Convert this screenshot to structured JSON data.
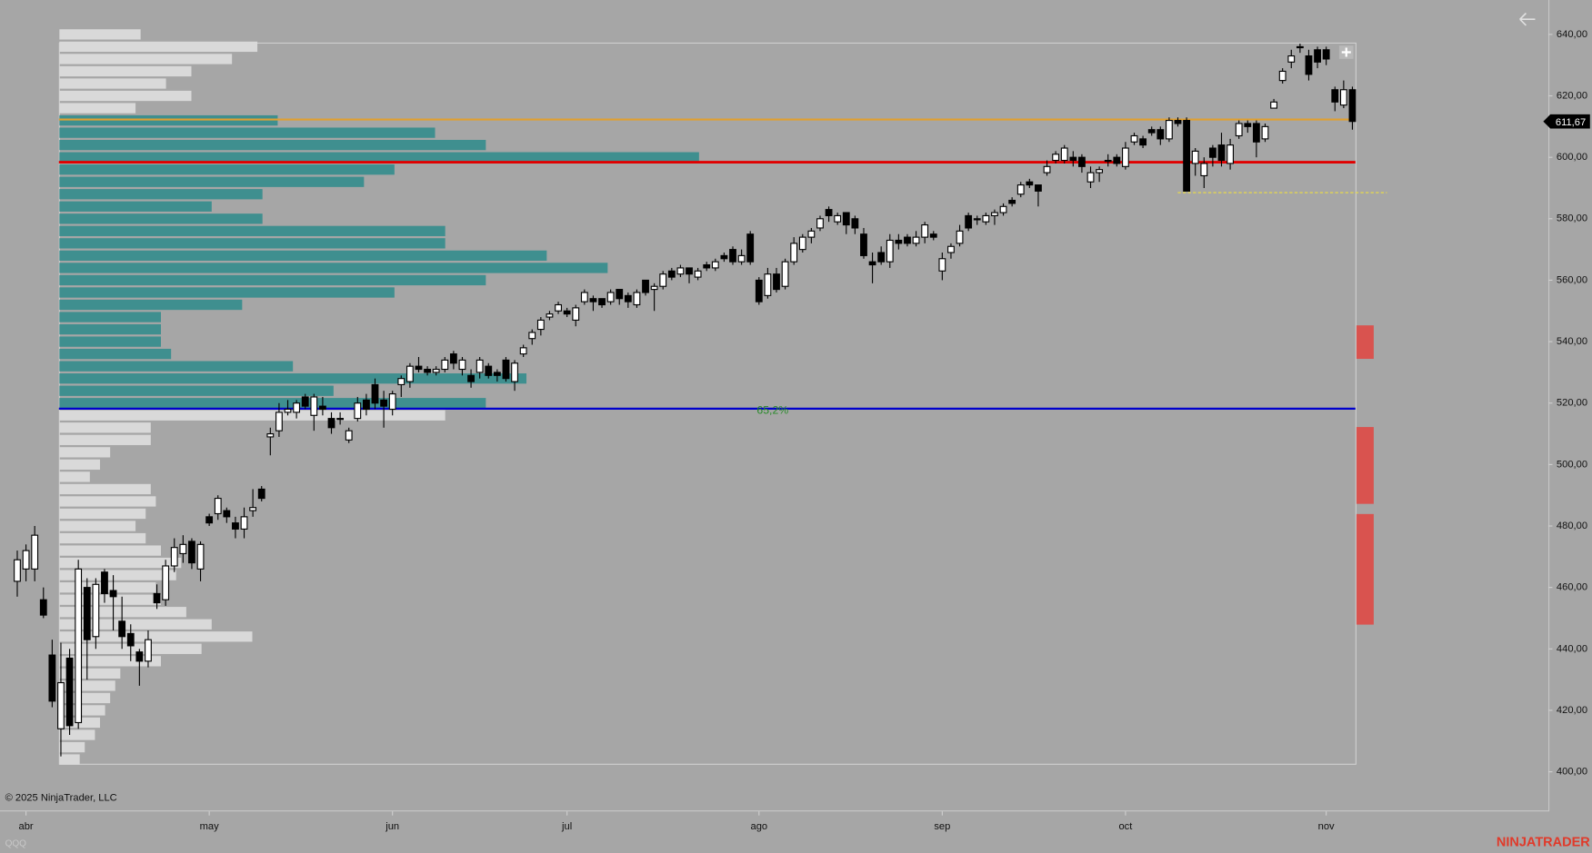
{
  "chart_data": {
    "type": "candlestick",
    "symbol": "QQQ",
    "copyright": "© 2025 NinjaTrader, LLC",
    "brand": "NINJATRADER",
    "categories": [
      null,
      "abr",
      null,
      null,
      null,
      null,
      null,
      null,
      null,
      null,
      null,
      null,
      null,
      null,
      null,
      null,
      null,
      null,
      null,
      null,
      null,
      null,
      "may",
      null,
      null,
      null,
      null,
      null,
      null,
      null,
      null,
      null,
      null,
      null,
      null,
      null,
      null,
      null,
      null,
      null,
      null,
      null,
      null,
      "jun",
      null,
      null,
      null,
      null,
      null,
      null,
      null,
      null,
      null,
      null,
      null,
      null,
      null,
      null,
      null,
      null,
      null,
      null,
      null,
      "jul",
      null,
      null,
      null,
      null,
      null,
      null,
      null,
      null,
      null,
      null,
      null,
      null,
      null,
      null,
      null,
      null,
      null,
      null,
      null,
      null,
      null,
      "ago",
      null,
      null,
      null,
      null,
      null,
      null,
      null,
      null,
      null,
      null,
      null,
      null,
      null,
      null,
      null,
      null,
      null,
      null,
      null,
      null,
      "sep",
      null,
      null,
      null,
      null,
      null,
      null,
      null,
      null,
      null,
      null,
      null,
      null,
      null,
      null,
      null,
      null,
      null,
      null,
      null,
      null,
      "oct",
      null,
      null,
      null,
      null,
      null,
      null,
      null,
      null,
      null,
      null,
      null,
      null,
      null,
      null,
      null,
      null,
      null,
      null,
      null,
      null,
      null,
      null,
      "nov",
      null,
      null,
      null
    ],
    "open": [
      462,
      466,
      466,
      456,
      438,
      414,
      437,
      416,
      460,
      444,
      465,
      459,
      449,
      445,
      439,
      436,
      458,
      456,
      467,
      471,
      475,
      466,
      483,
      484,
      485,
      481,
      479,
      485,
      492,
      509,
      511,
      517,
      517,
      522,
      516,
      519,
      515,
      515,
      508,
      515,
      521,
      526,
      521,
      518,
      526,
      527,
      532,
      531,
      530,
      531,
      536,
      531,
      529,
      530,
      532,
      530,
      534,
      527,
      536,
      541,
      544,
      548,
      550,
      550,
      547,
      553,
      554,
      554,
      553,
      557,
      555,
      552,
      560,
      557,
      558,
      563,
      562,
      564,
      561,
      565,
      564,
      568,
      570,
      566,
      575,
      560,
      555,
      562,
      558,
      566,
      570,
      574,
      577,
      583,
      579,
      582,
      580,
      575,
      566,
      569,
      566,
      573,
      574,
      572,
      574,
      575,
      563,
      569,
      572,
      581,
      580,
      579,
      581,
      582,
      586,
      588,
      592,
      591,
      595,
      599,
      599,
      600,
      600,
      592,
      595,
      599,
      600,
      597,
      605,
      606,
      609,
      609,
      606,
      612,
      612,
      598,
      594,
      603,
      604,
      598,
      607,
      611,
      611,
      606,
      616,
      625,
      631,
      636,
      633,
      635,
      635,
      622,
      617,
      622
    ],
    "high": [
      472,
      474,
      480,
      460,
      443,
      442,
      440,
      469,
      463,
      463,
      466,
      464,
      457,
      448,
      440,
      446,
      461,
      469,
      476,
      477,
      476,
      475,
      484,
      490,
      486,
      483,
      486,
      492,
      493,
      512,
      520,
      521,
      521,
      523,
      523,
      522,
      517,
      517,
      512,
      522,
      523,
      528,
      524,
      524,
      529,
      533,
      535,
      532,
      532,
      535,
      537,
      535,
      531,
      535,
      533,
      531,
      535,
      534,
      539,
      544,
      548,
      550,
      553,
      551,
      552,
      557,
      555,
      554,
      557,
      557,
      556,
      557,
      560,
      559,
      563,
      564,
      565,
      564,
      564,
      566,
      567,
      569,
      571,
      570,
      576,
      561,
      564,
      564,
      567,
      574,
      575,
      577,
      581,
      584,
      582,
      582,
      581,
      577,
      569,
      571,
      575,
      575,
      575,
      576,
      579,
      576,
      569,
      572,
      578,
      582,
      581,
      582,
      583,
      585,
      587,
      592,
      593,
      591,
      599,
      602,
      604,
      602,
      601,
      597,
      597,
      601,
      601,
      605,
      608,
      607,
      610,
      610,
      613,
      613,
      613,
      603,
      600,
      604,
      608,
      606,
      612,
      612,
      612,
      611,
      619,
      629,
      635,
      637,
      635,
      636,
      636,
      623,
      625,
      623
    ],
    "low": [
      457,
      462,
      462,
      450,
      421,
      405,
      412,
      414,
      430,
      440,
      455,
      446,
      440,
      436,
      428,
      434,
      453,
      454,
      465,
      468,
      466,
      462,
      480,
      482,
      481,
      476,
      476,
      483,
      488,
      503,
      509,
      516,
      515,
      518,
      511,
      516,
      510,
      513,
      507,
      514,
      516,
      518,
      512,
      516,
      522,
      525,
      530,
      529,
      529,
      530,
      531,
      529,
      525,
      528,
      528,
      527,
      527,
      524,
      535,
      539,
      542,
      547,
      549,
      548,
      545,
      552,
      550,
      551,
      552,
      552,
      551,
      551,
      555,
      550,
      557,
      560,
      561,
      559,
      560,
      563,
      563,
      566,
      565,
      565,
      565,
      552,
      554,
      556,
      557,
      565,
      569,
      572,
      576,
      579,
      578,
      575,
      575,
      567,
      559,
      565,
      564,
      570,
      571,
      571,
      572,
      573,
      560,
      567,
      571,
      576,
      578,
      578,
      578,
      581,
      584,
      587,
      590,
      584,
      594,
      598,
      598,
      597,
      595,
      590,
      592,
      597,
      597,
      596,
      604,
      603,
      607,
      604,
      605,
      610,
      589,
      594,
      590,
      597,
      597,
      596,
      606,
      608,
      600,
      605,
      616,
      624,
      629,
      634,
      625,
      629,
      630,
      615,
      616,
      609
    ],
    "close": [
      469,
      472,
      477,
      451,
      423,
      429,
      415,
      466,
      443,
      461,
      458,
      457,
      444,
      441,
      436,
      443,
      455,
      467,
      473,
      474,
      468,
      474,
      481,
      489,
      483,
      479,
      483,
      486,
      489,
      510,
      517,
      518,
      520,
      519,
      522,
      518,
      512,
      515,
      511,
      520,
      518,
      520,
      519,
      523,
      528,
      532,
      531,
      530,
      531,
      534,
      533,
      534,
      527,
      534,
      529,
      529,
      528,
      533,
      538,
      543,
      547,
      549,
      552,
      549,
      551,
      556,
      553,
      552,
      556,
      554,
      553,
      556,
      556,
      558,
      562,
      561,
      564,
      562,
      563,
      564,
      566,
      567,
      566,
      568,
      566,
      553,
      562,
      557,
      566,
      572,
      574,
      576,
      580,
      581,
      581,
      578,
      577,
      568,
      565,
      566,
      573,
      572,
      572,
      574,
      578,
      574,
      567,
      571,
      576,
      577,
      580,
      581,
      582,
      584,
      585,
      591,
      591,
      589,
      597,
      601,
      603,
      599,
      597,
      595,
      596,
      599,
      598,
      603,
      607,
      604,
      608,
      606,
      612,
      611,
      589,
      602,
      598,
      600,
      599,
      604,
      611,
      610,
      605,
      610,
      618,
      628,
      633,
      636,
      627,
      631,
      632,
      618,
      622,
      611.67
    ],
    "ylim": [
      387.1,
      651.2
    ],
    "yticks": [
      {
        "value": 400,
        "label": "400,00"
      },
      {
        "value": 420,
        "label": "420,00"
      },
      {
        "value": 440,
        "label": "440,00"
      },
      {
        "value": 460,
        "label": "460,00"
      },
      {
        "value": 480,
        "label": "480,00"
      },
      {
        "value": 500,
        "label": "500,00"
      },
      {
        "value": 520,
        "label": "520,00"
      },
      {
        "value": 540,
        "label": "540,00"
      },
      {
        "value": 560,
        "label": "560,00"
      },
      {
        "value": 580,
        "label": "580,00"
      },
      {
        "value": 600,
        "label": "600,00"
      },
      {
        "value": 620,
        "label": "620,00"
      },
      {
        "value": 640,
        "label": "640,00"
      }
    ],
    "last_price": {
      "value": 611.67,
      "label": "611,67"
    },
    "volume_profile": {
      "levels": [
        640,
        636,
        632,
        628,
        624,
        620,
        616,
        612,
        608,
        604,
        600,
        596,
        592,
        588,
        584,
        580,
        576,
        572,
        568,
        564,
        560,
        556,
        552,
        548,
        544,
        540,
        536,
        532,
        528,
        524,
        520,
        516,
        512,
        508,
        504,
        500,
        496,
        492,
        488,
        484,
        480,
        476,
        472,
        468,
        464,
        460,
        456,
        452,
        448,
        444,
        440,
        436,
        432,
        428,
        424,
        420,
        416,
        412,
        408,
        404
      ],
      "volume": [
        80,
        195,
        170,
        130,
        105,
        130,
        75,
        215,
        370,
        420,
        630,
        330,
        300,
        200,
        150,
        200,
        380,
        380,
        480,
        540,
        420,
        330,
        180,
        100,
        100,
        100,
        110,
        230,
        460,
        270,
        420,
        380,
        90,
        90,
        50,
        40,
        30,
        90,
        95,
        85,
        75,
        85,
        100,
        120,
        115,
        95,
        100,
        125,
        150,
        190,
        140,
        100,
        60,
        55,
        50,
        45,
        40,
        35,
        25,
        20
      ],
      "value_area_high": 612.3,
      "poc": 598.4,
      "value_area_low": 518.2,
      "value_area_label": "65,2%",
      "value_area_color": "#3f8f8f",
      "outside_color": "#d9d9d9",
      "vah_color": "#e0a030",
      "poc_color": "#e00000",
      "val_color": "#0000cc"
    },
    "dashed_level": 588.5,
    "dashed_color": "#f0e040",
    "zones": [
      [
        534.4,
        545.3
      ],
      [
        487.2,
        512.2
      ],
      [
        447.9,
        483.9
      ]
    ],
    "zone_color": "#d9534f"
  }
}
